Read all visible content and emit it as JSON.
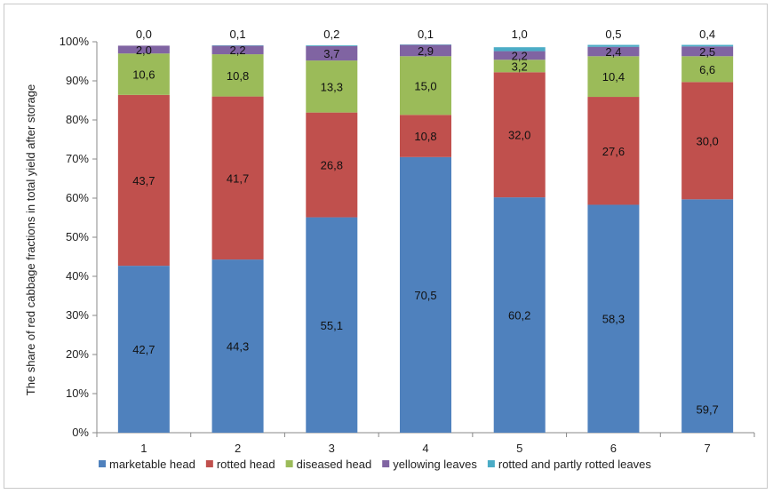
{
  "chart_data": {
    "type": "bar",
    "stacked": true,
    "percent_stacked": true,
    "categories": [
      "1",
      "2",
      "3",
      "4",
      "5",
      "6",
      "7"
    ],
    "ylabel": "The share of red cabbage fractions in total yield after storage",
    "xlabel": "",
    "ylim": [
      0,
      100
    ],
    "y_ticks": [
      "0%",
      "10%",
      "20%",
      "30%",
      "40%",
      "50%",
      "60%",
      "70%",
      "80%",
      "90%",
      "100%"
    ],
    "grid": false,
    "legend_position": "bottom",
    "series": [
      {
        "name": "marketable head",
        "color": "#4f81bd",
        "values": [
          42.7,
          44.3,
          55.1,
          70.5,
          60.2,
          58.3,
          59.7
        ],
        "labels": [
          "42,7",
          "44,3",
          "55,1",
          "70,5",
          "60,2",
          "58,3",
          "59,7"
        ]
      },
      {
        "name": "rotted head",
        "color": "#c0504d",
        "values": [
          43.7,
          41.7,
          26.8,
          10.8,
          32.0,
          27.6,
          30.0
        ],
        "labels": [
          "43,7",
          "41,7",
          "26,8",
          "10,8",
          "32,0",
          "27,6",
          "30,0"
        ]
      },
      {
        "name": "diseased head",
        "color": "#9bbb59",
        "values": [
          10.6,
          10.8,
          13.3,
          15.0,
          3.2,
          10.4,
          6.6
        ],
        "labels": [
          "10,6",
          "10,8",
          "13,3",
          "15,0",
          "3,2",
          "10,4",
          "6,6"
        ]
      },
      {
        "name": "yellowing leaves",
        "color": "#8064a2",
        "values": [
          2.0,
          2.2,
          3.7,
          2.9,
          2.2,
          2.4,
          2.5
        ],
        "labels": [
          "2,0",
          "2,2",
          "3,7",
          "2,9",
          "2,2",
          "2,4",
          "2,5"
        ]
      },
      {
        "name": "rotted and partly rotted leaves",
        "color": "#4bacc6",
        "values": [
          0.0,
          0.1,
          0.2,
          0.1,
          1.0,
          0.5,
          0.4
        ],
        "labels": [
          "0,0",
          "0,1",
          "0,2",
          "0,1",
          "1,0",
          "0,5",
          "0,4"
        ]
      }
    ]
  }
}
